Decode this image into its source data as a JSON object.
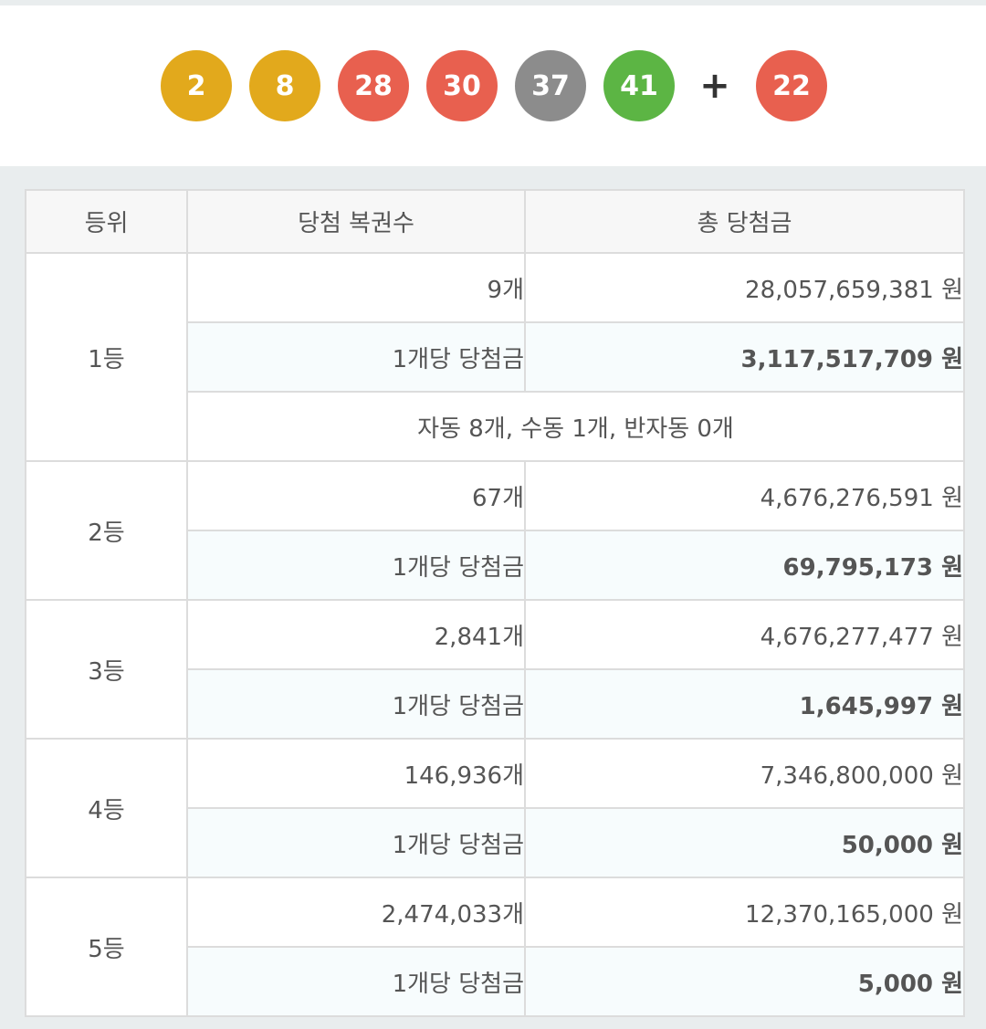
{
  "winning_numbers": {
    "balls": [
      {
        "number": "2",
        "color": "#e2a91c"
      },
      {
        "number": "8",
        "color": "#e2a91c"
      },
      {
        "number": "28",
        "color": "#e8604f"
      },
      {
        "number": "30",
        "color": "#e8604f"
      },
      {
        "number": "37",
        "color": "#8c8c8c"
      },
      {
        "number": "41",
        "color": "#5cb544"
      }
    ],
    "plus": "+",
    "bonus": {
      "number": "22",
      "color": "#e8604f"
    }
  },
  "table": {
    "headers": {
      "rank": "등위",
      "count": "당첨 복권수",
      "total": "총 당첨금"
    },
    "per_label": "1개당 당첨금",
    "ranks": [
      {
        "rank": "1등",
        "count": "9개",
        "total": "28,057,659,381 원",
        "per_amount": "3,117,517,709 원",
        "note": "자동 8개, 수동 1개, 반자동 0개"
      },
      {
        "rank": "2등",
        "count": "67개",
        "total": "4,676,276,591 원",
        "per_amount": "69,795,173 원"
      },
      {
        "rank": "3등",
        "count": "2,841개",
        "total": "4,676,277,477 원",
        "per_amount": "1,645,997 원"
      },
      {
        "rank": "4등",
        "count": "146,936개",
        "total": "7,346,800,000 원",
        "per_amount": "50,000 원"
      },
      {
        "rank": "5등",
        "count": "2,474,033개",
        "total": "12,370,165,000 원",
        "per_amount": "5,000 원"
      }
    ]
  }
}
